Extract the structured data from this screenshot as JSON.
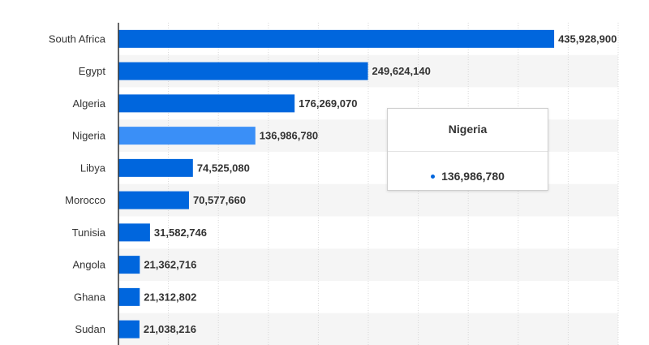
{
  "chart_data": {
    "type": "bar",
    "orientation": "horizontal",
    "categories": [
      "South Africa",
      "Egypt",
      "Algeria",
      "Nigeria",
      "Libya",
      "Morocco",
      "Tunisia",
      "Angola",
      "Ghana",
      "Sudan"
    ],
    "values": [
      435928900,
      249624140,
      176269070,
      136986780,
      74525080,
      70577660,
      31582746,
      21362716,
      21312802,
      21038216
    ],
    "value_labels": [
      "435,928,900",
      "249,624,140",
      "176,269,070",
      "136,986,780",
      "74,525,080",
      "70,577,660",
      "31,582,746",
      "21,362,716",
      "21,312,802",
      "21,038,216"
    ],
    "xlim": [
      0,
      500000000
    ],
    "grid": true,
    "highlighted_category": "Nigeria",
    "colors": {
      "bar": "#0066dd",
      "bar_highlight": "#3a8ff7",
      "row_band": "#f5f5f5",
      "grid": "#d8d8d8",
      "axis": "#333333"
    }
  },
  "tooltip": {
    "title": "Nigeria",
    "value": "136,986,780"
  }
}
